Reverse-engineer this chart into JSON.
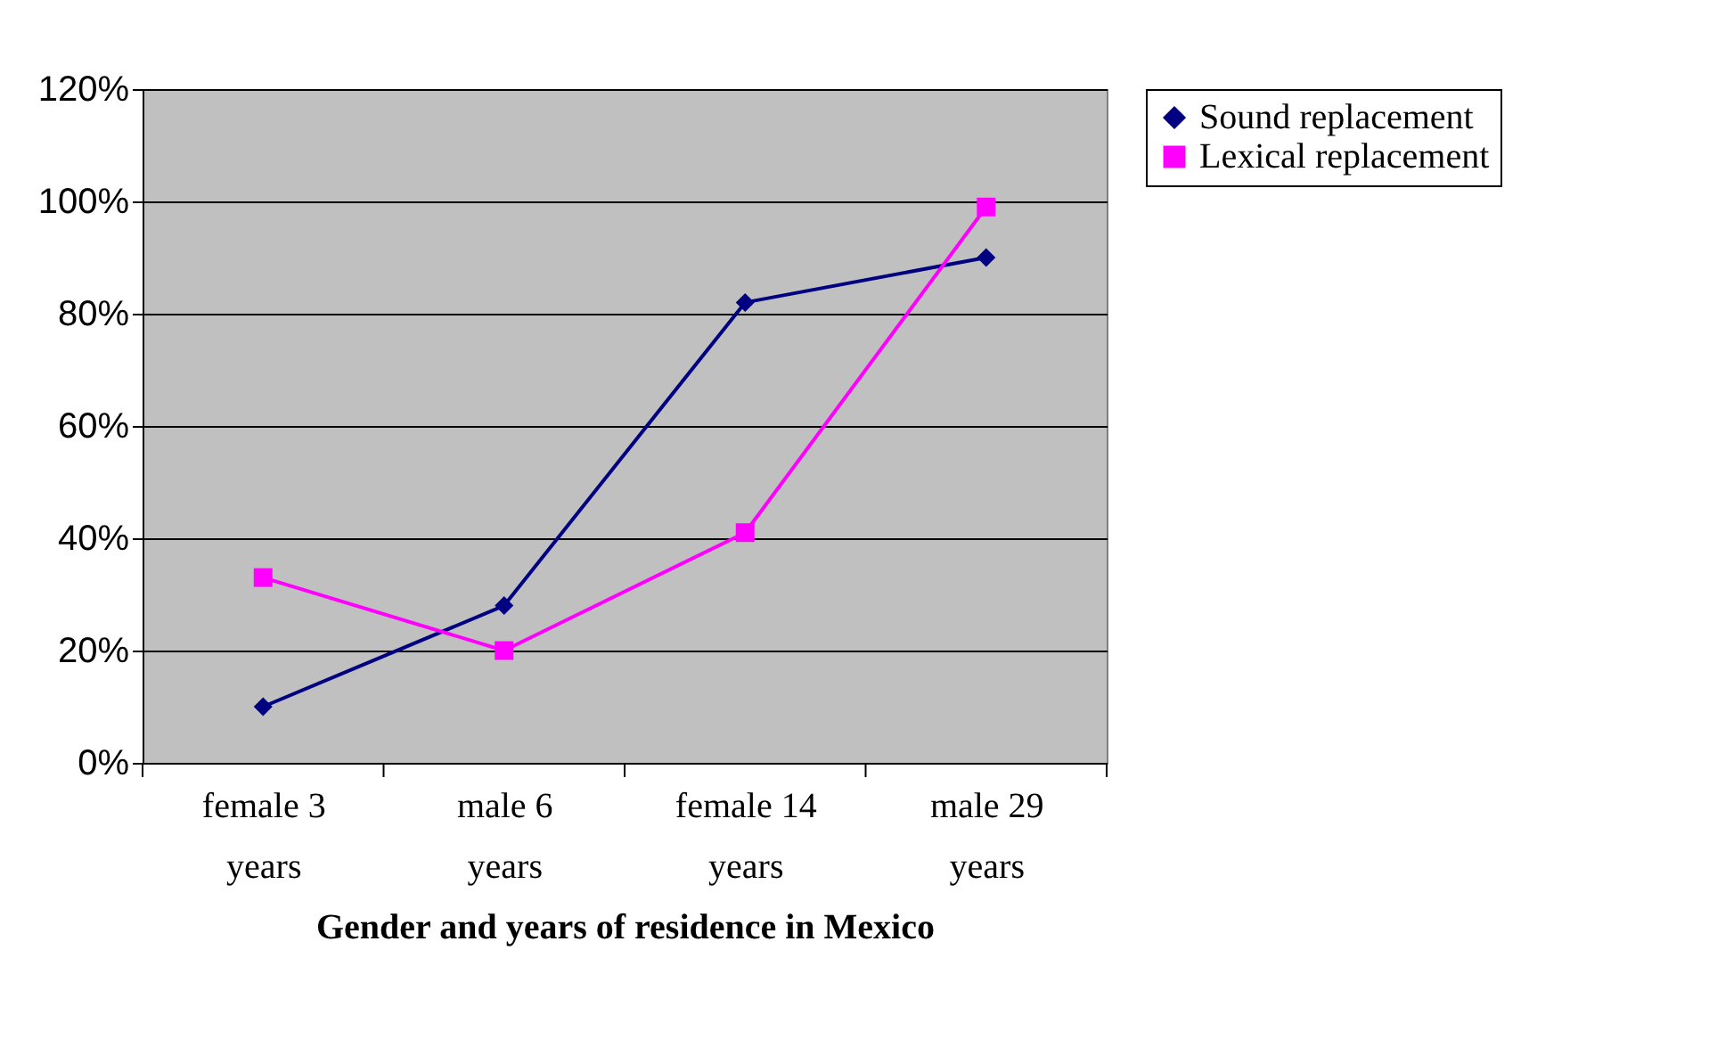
{
  "chart_data": {
    "type": "line",
    "xlabel": "Gender and years of residence in Mexico",
    "categories": [
      "female 3 years",
      "male 6 years",
      "female 14 years",
      "male 29 years"
    ],
    "series": [
      {
        "name": "Sound replacement",
        "color": "#000080",
        "marker": "diamond",
        "values": [
          10,
          28,
          82,
          90
        ]
      },
      {
        "name": "Lexical replacement",
        "color": "#ff00ff",
        "marker": "square",
        "values": [
          33,
          20,
          41,
          99
        ]
      }
    ],
    "ylim": [
      0,
      120
    ],
    "yticks": [
      {
        "value": 0,
        "label": "0%"
      },
      {
        "value": 20,
        "label": "20%"
      },
      {
        "value": 40,
        "label": "40%"
      },
      {
        "value": 60,
        "label": "60%"
      },
      {
        "value": 80,
        "label": "80%"
      },
      {
        "value": 100,
        "label": "100%"
      },
      {
        "value": 120,
        "label": "120%"
      }
    ],
    "grid": "y",
    "legend": "right",
    "line_style": "solid"
  }
}
